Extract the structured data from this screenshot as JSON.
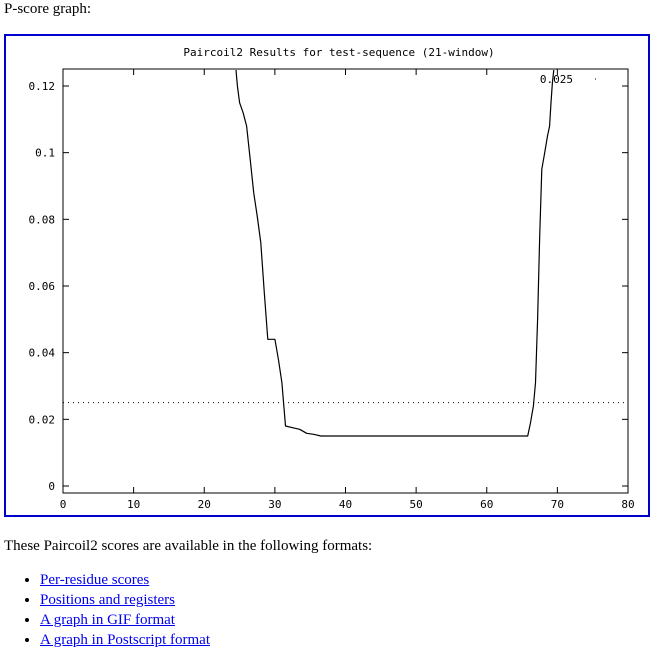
{
  "heading": "P-score graph:",
  "chart_data": {
    "type": "line",
    "title": "Paircoil2 Results for test-sequence  (21-window)",
    "xlabel": "",
    "ylabel": "",
    "xlim": [
      0,
      80
    ],
    "ylim": [
      0,
      0.12
    ],
    "x_ticks": [
      0,
      10,
      20,
      30,
      40,
      50,
      60,
      70,
      80
    ],
    "y_ticks": [
      0,
      0.02,
      0.04,
      0.06,
      0.08,
      0.1,
      0.12
    ],
    "y_tick_labels": [
      "0",
      "0.02",
      "0.04",
      "0.06",
      "0.08",
      "0.1",
      "0.12"
    ],
    "threshold": {
      "value": 0.025,
      "label": "0.025",
      "style": "dotted"
    },
    "legend_position": "top-right",
    "grid": false,
    "series": [
      {
        "x": [
          24.5,
          24.7,
          25.0,
          25.5,
          26.0,
          26.5,
          27.0,
          27.5,
          28.0,
          28.5,
          29.0,
          29.3,
          30.0,
          30.5,
          31.0,
          31.5,
          32.5,
          33.5,
          34.5,
          35.5,
          36.5,
          37.0,
          40,
          45,
          50,
          55,
          60,
          65,
          65.8,
          66.2,
          66.6,
          66.9,
          67.2,
          67.5,
          67.8,
          68.2,
          68.6,
          68.9,
          69.1,
          69.3,
          69.5
        ],
        "y": [
          0.1248,
          0.12,
          0.115,
          0.112,
          0.108,
          0.098,
          0.088,
          0.081,
          0.073,
          0.058,
          0.044,
          0.044,
          0.044,
          0.038,
          0.031,
          0.018,
          0.0175,
          0.017,
          0.0158,
          0.0155,
          0.015,
          0.015,
          0.015,
          0.015,
          0.015,
          0.015,
          0.015,
          0.015,
          0.015,
          0.019,
          0.024,
          0.031,
          0.05,
          0.075,
          0.095,
          0.1,
          0.105,
          0.108,
          0.115,
          0.121,
          0.1248
        ]
      }
    ]
  },
  "formats_intro": "These Paircoil2 scores are available in the following formats:",
  "links": [
    "Per-residue scores",
    "Positions and registers",
    "A graph in GIF format",
    "A graph in Postscript format"
  ]
}
